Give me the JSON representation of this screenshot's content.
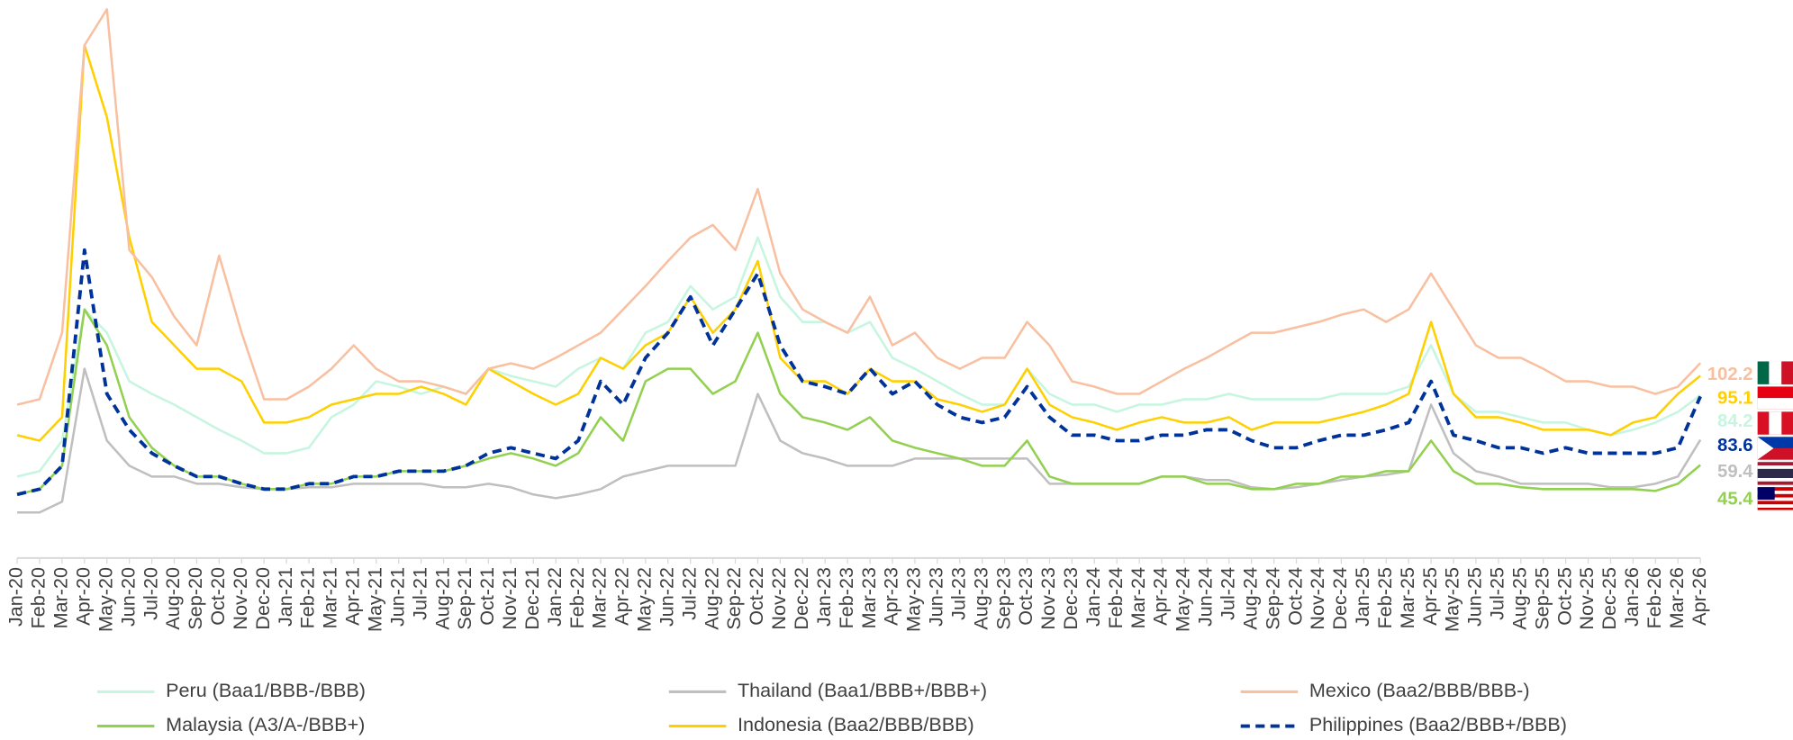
{
  "chart_data": {
    "type": "line",
    "categories": [
      "Jan-20",
      "Feb-20",
      "Mar-20",
      "Apr-20",
      "May-20",
      "Jun-20",
      "Jul-20",
      "Aug-20",
      "Sep-20",
      "Oct-20",
      "Nov-20",
      "Dec-20",
      "Jan-21",
      "Feb-21",
      "Mar-21",
      "Apr-21",
      "May-21",
      "Jun-21",
      "Jul-21",
      "Aug-21",
      "Sep-21",
      "Oct-21",
      "Nov-21",
      "Dec-21",
      "Jan-22",
      "Feb-22",
      "Mar-22",
      "Apr-22",
      "May-22",
      "Jun-22",
      "Jul-22",
      "Aug-22",
      "Sep-22",
      "Oct-22",
      "Nov-22",
      "Dec-22",
      "Jan-23",
      "Feb-23",
      "Mar-23",
      "Apr-23",
      "May-23",
      "Jun-23",
      "Jul-23",
      "Aug-23",
      "Sep-23",
      "Oct-23",
      "Nov-23",
      "Dec-23",
      "Jan-24",
      "Feb-24",
      "Mar-24",
      "Apr-24",
      "May-24",
      "Jun-24",
      "Jul-24",
      "Aug-24",
      "Sep-24",
      "Oct-24",
      "Nov-24",
      "Dec-24",
      "Jan-25",
      "Feb-25",
      "Mar-25",
      "Apr-25",
      "May-25",
      "Jun-25",
      "Jul-25",
      "Aug-25",
      "Sep-25",
      "Oct-25",
      "Nov-25",
      "Dec-25",
      "Jan-26",
      "Feb-26",
      "Mar-26",
      "Apr-26"
    ],
    "series": [
      {
        "name": "Peru (Baa1/BBB-/BBB)",
        "color": "#c6f5e0",
        "values": [
          39,
          42,
          59,
          132,
          119,
          92,
          85,
          79,
          72,
          65,
          59,
          52,
          52,
          55,
          72,
          79,
          92,
          89,
          85,
          89,
          85,
          99,
          95,
          92,
          89,
          99,
          105,
          99,
          119,
          125,
          145,
          132,
          139,
          172,
          139,
          125,
          125,
          119,
          125,
          105,
          99,
          92,
          85,
          79,
          79,
          99,
          85,
          79,
          79,
          75,
          79,
          79,
          82,
          82,
          85,
          82,
          82,
          82,
          82,
          85,
          85,
          85,
          89,
          112,
          85,
          75,
          75,
          72,
          69,
          69,
          65,
          62,
          65,
          69,
          75,
          84.2
        ]
      },
      {
        "name": "Thailand (Baa1/BBB+/BBB+)",
        "color": "#bfbfbf",
        "values": [
          19,
          19,
          25,
          99,
          59,
          45,
          39,
          39,
          35,
          35,
          33,
          32,
          32,
          33,
          33,
          35,
          35,
          35,
          35,
          33,
          33,
          35,
          33,
          29,
          27,
          29,
          32,
          39,
          42,
          45,
          45,
          45,
          45,
          85,
          59,
          52,
          49,
          45,
          45,
          45,
          49,
          49,
          49,
          49,
          49,
          49,
          35,
          35,
          35,
          35,
          35,
          39,
          39,
          37,
          37,
          33,
          32,
          33,
          35,
          37,
          39,
          40,
          42,
          79,
          52,
          42,
          39,
          35,
          35,
          35,
          35,
          33,
          33,
          35,
          39,
          59.4
        ]
      },
      {
        "name": "Mexico (Baa2/BBB/BBB-)",
        "color": "#f8c0a0",
        "values": [
          79,
          82,
          119,
          279,
          299,
          165,
          150,
          128,
          112,
          162,
          119,
          82,
          82,
          89,
          99,
          112,
          99,
          92,
          92,
          89,
          85,
          99,
          102,
          99,
          105,
          112,
          119,
          132,
          145,
          159,
          172,
          179,
          165,
          199,
          152,
          132,
          125,
          119,
          139,
          112,
          119,
          105,
          99,
          105,
          105,
          125,
          112,
          92,
          89,
          85,
          85,
          92,
          99,
          105,
          112,
          119,
          119,
          122,
          125,
          129,
          132,
          125,
          132,
          152,
          132,
          112,
          105,
          105,
          99,
          92,
          92,
          89,
          89,
          85,
          89,
          102.2
        ]
      },
      {
        "name": "Malaysia (A3/A-/BBB+)",
        "color": "#92d050",
        "values": [
          29,
          32,
          45,
          132,
          112,
          72,
          55,
          45,
          39,
          39,
          35,
          32,
          32,
          35,
          35,
          39,
          39,
          42,
          42,
          42,
          45,
          49,
          52,
          49,
          45,
          52,
          72,
          59,
          92,
          99,
          99,
          85,
          92,
          119,
          85,
          72,
          69,
          65,
          72,
          59,
          55,
          52,
          49,
          45,
          45,
          59,
          39,
          35,
          35,
          35,
          35,
          39,
          39,
          35,
          35,
          32,
          32,
          35,
          35,
          39,
          39,
          42,
          42,
          59,
          42,
          35,
          35,
          33,
          32,
          32,
          32,
          32,
          32,
          31,
          35,
          45.4
        ]
      },
      {
        "name": "Indonesia (Baa2/BBB/BBB)",
        "color": "#ffd000",
        "values": [
          62,
          59,
          72,
          279,
          239,
          172,
          125,
          112,
          99,
          99,
          92,
          69,
          69,
          72,
          79,
          82,
          85,
          85,
          89,
          85,
          79,
          99,
          92,
          85,
          79,
          85,
          105,
          99,
          112,
          119,
          139,
          119,
          132,
          159,
          105,
          92,
          92,
          85,
          99,
          92,
          92,
          82,
          79,
          75,
          79,
          99,
          79,
          72,
          69,
          65,
          69,
          72,
          69,
          69,
          72,
          65,
          69,
          69,
          69,
          72,
          75,
          79,
          85,
          125,
          85,
          72,
          72,
          69,
          65,
          65,
          65,
          62,
          69,
          72,
          85,
          95.1
        ]
      },
      {
        "name": "Philippines (Baa2/BBB+/BBB)",
        "color": "#003399",
        "dashed": true,
        "values": [
          29,
          32,
          45,
          165,
          85,
          65,
          52,
          45,
          39,
          39,
          35,
          32,
          32,
          35,
          35,
          39,
          39,
          42,
          42,
          42,
          45,
          52,
          55,
          52,
          49,
          59,
          92,
          79,
          105,
          119,
          139,
          112,
          132,
          152,
          112,
          92,
          89,
          85,
          99,
          85,
          92,
          79,
          72,
          69,
          72,
          89,
          72,
          62,
          62,
          59,
          59,
          62,
          62,
          65,
          65,
          59,
          55,
          55,
          59,
          62,
          62,
          65,
          69,
          92,
          62,
          59,
          55,
          55,
          52,
          55,
          52,
          52,
          52,
          52,
          55,
          83.6
        ]
      }
    ]
  }
}
